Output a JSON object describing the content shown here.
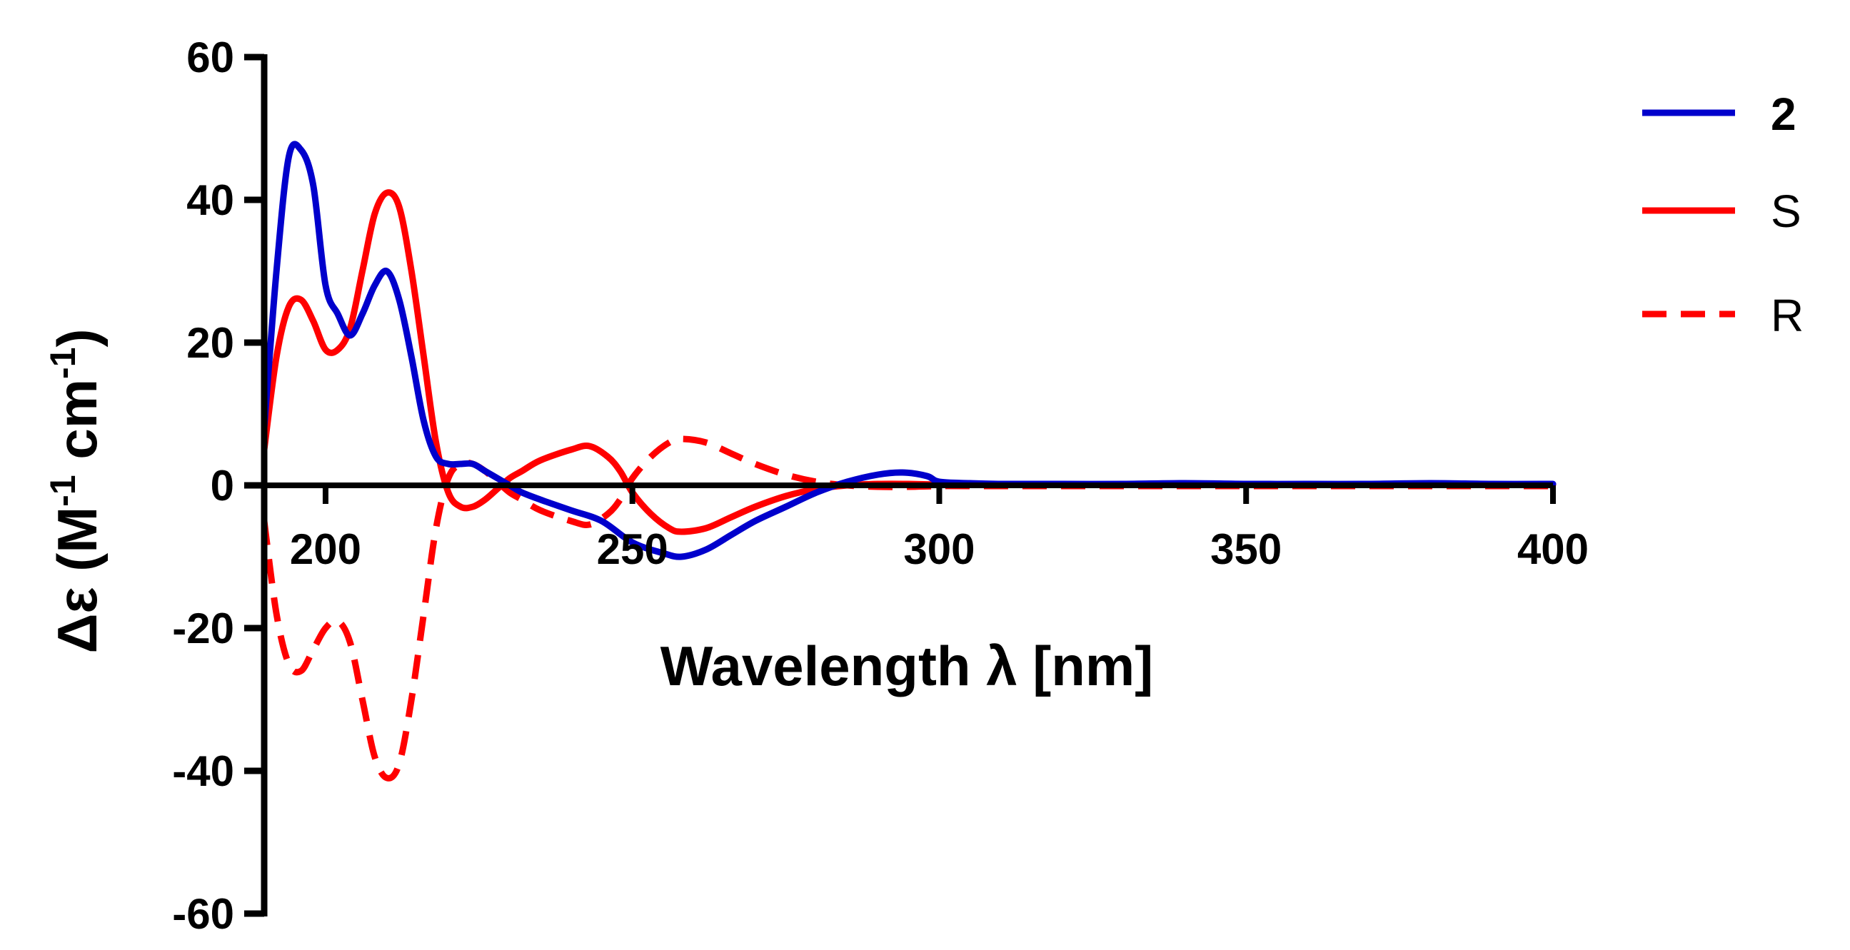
{
  "chart_data": {
    "type": "line",
    "xlabel": "Wavelength λ [nm]",
    "ylabel_main": "Δε (M",
    "ylabel_sup1": "-1",
    "ylabel_mid": " cm",
    "ylabel_sup2": "-1",
    "ylabel_end": ")",
    "xlim": [
      190,
      400
    ],
    "ylim": [
      -60,
      60
    ],
    "xticks": [
      200,
      250,
      300,
      350,
      400
    ],
    "yticks": [
      -60,
      -40,
      -20,
      0,
      20,
      40,
      60
    ],
    "zero_line": true,
    "legend_position": "top-right",
    "series": [
      {
        "name": "2",
        "name_bold": true,
        "color": "#0000cc",
        "dash": "solid",
        "x": [
          190,
          192,
          194,
          196,
          198,
          200,
          202,
          204,
          206,
          208,
          210,
          212,
          214,
          216,
          218,
          220,
          222,
          224,
          226,
          228,
          230,
          232,
          235,
          240,
          245,
          250,
          255,
          258,
          262,
          266,
          270,
          275,
          280,
          285,
          290,
          294,
          298,
          300,
          305,
          310,
          320,
          330,
          340,
          350,
          360,
          370,
          380,
          390,
          400
        ],
        "y": [
          8,
          30,
          46,
          47,
          42,
          28,
          24,
          21,
          24,
          28,
          30,
          26,
          18,
          9,
          4,
          3,
          3,
          3,
          2,
          1,
          0,
          -1,
          -2,
          -3.5,
          -5,
          -8,
          -9.5,
          -10,
          -9,
          -7,
          -5,
          -3,
          -1,
          0.5,
          1.5,
          1.8,
          1.3,
          0.5,
          0.3,
          0.2,
          0.2,
          0.2,
          0.3,
          0.2,
          0.2,
          0.2,
          0.3,
          0.2,
          0.2
        ]
      },
      {
        "name": "S",
        "name_bold": false,
        "color": "#ff0000",
        "dash": "solid",
        "x": [
          190,
          192,
          194,
          196,
          198,
          200,
          202,
          204,
          206,
          208,
          210,
          212,
          214,
          216,
          218,
          220,
          222,
          224,
          226,
          228,
          230,
          232,
          235,
          240,
          243,
          246,
          248,
          250,
          253,
          256,
          258,
          262,
          266,
          270,
          275,
          280,
          285,
          290,
          295,
          300,
          305,
          310,
          320,
          330,
          340,
          350,
          360,
          370,
          380,
          390,
          400
        ],
        "y": [
          5,
          18,
          25,
          26,
          23,
          19,
          19,
          22,
          30,
          38,
          41,
          39,
          30,
          18,
          6,
          -1,
          -3,
          -3,
          -2,
          -0.5,
          1,
          2,
          3.5,
          5,
          5.5,
          4,
          2,
          -1,
          -4,
          -6,
          -6.5,
          -6,
          -4.5,
          -3,
          -1.5,
          -0.5,
          0,
          0.2,
          0.2,
          0.1,
          0.1,
          0.1,
          0.1,
          0.1,
          0.1,
          0.1,
          0.1,
          0.1,
          0.1,
          0.1,
          0.1
        ]
      },
      {
        "name": "R",
        "name_bold": false,
        "color": "#ff0000",
        "dash": "dashed",
        "x": [
          190,
          192,
          194,
          196,
          198,
          200,
          202,
          204,
          206,
          208,
          210,
          212,
          214,
          216,
          218,
          220,
          222,
          224,
          226,
          228,
          230,
          232,
          235,
          240,
          243,
          246,
          248,
          250,
          253,
          256,
          258,
          262,
          266,
          270,
          275,
          280,
          285,
          290,
          295,
          300,
          305,
          310,
          320,
          330,
          340,
          350,
          360,
          370,
          380,
          390,
          400
        ],
        "y": [
          -5,
          -18,
          -25,
          -26,
          -23,
          -20,
          -19,
          -22,
          -30,
          -38,
          -41,
          -39,
          -30,
          -18,
          -6,
          1,
          3,
          3,
          2,
          0.5,
          -1,
          -2,
          -3.5,
          -5,
          -5.5,
          -4,
          -2,
          1,
          4,
          6,
          6.5,
          6,
          4.5,
          3,
          1.5,
          0.5,
          0,
          -0.2,
          -0.2,
          -0.1,
          -0.1,
          -0.1,
          -0.1,
          -0.1,
          -0.1,
          -0.1,
          -0.1,
          -0.1,
          -0.1,
          -0.1,
          -0.1
        ]
      }
    ]
  }
}
